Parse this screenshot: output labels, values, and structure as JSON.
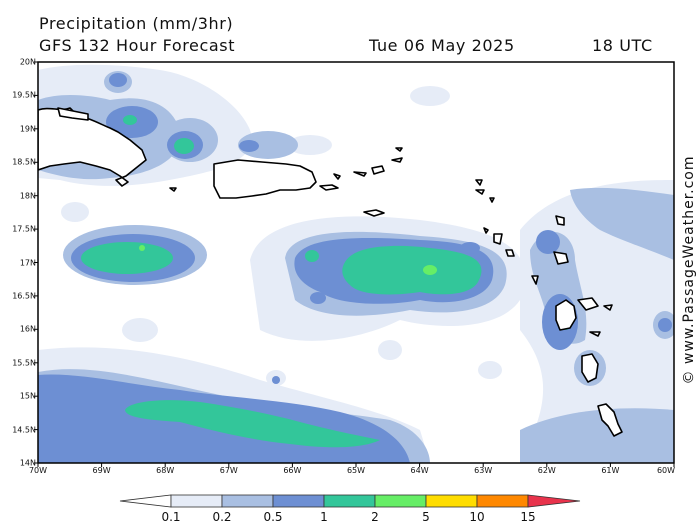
{
  "header": {
    "title": "Precipitation (mm/3hr)",
    "model": "GFS 132 Hour Forecast",
    "date": "Tue 06 May 2025",
    "time": "18 UTC"
  },
  "latitude_labels": [
    "20N",
    "19.5N",
    "19N",
    "18.5N",
    "18N",
    "17.5N",
    "17N",
    "16.5N",
    "16N",
    "15.5N",
    "15N",
    "14.5N",
    "14N"
  ],
  "longitude_labels": [
    "70W",
    "69W",
    "68W",
    "67W",
    "66W",
    "65W",
    "64W",
    "63W",
    "62W",
    "61W",
    "60W"
  ],
  "legend": {
    "labels": [
      "0.1",
      "0.2",
      "0.5",
      "1",
      "2",
      "5",
      "10",
      "15"
    ],
    "colors": [
      "#ffffff",
      "#e6ecf7",
      "#a9bfe2",
      "#6d8fd3",
      "#33c69a",
      "#66ee66",
      "#ffdd00",
      "#ff8800",
      "#e8334c"
    ]
  },
  "credit": "© www.PassageWeather.com"
}
